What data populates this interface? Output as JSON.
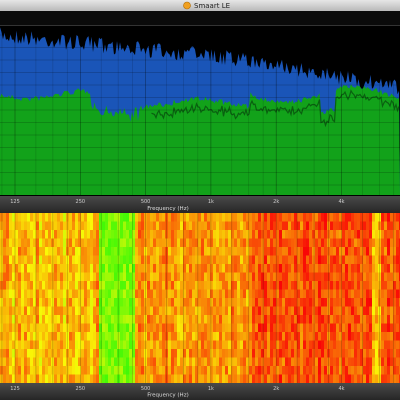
{
  "window": {
    "title": "Smaart LE"
  },
  "spectrum_axis": {
    "ticks": [
      "125",
      "250",
      "500",
      "1k",
      "2k",
      "4k"
    ],
    "label": "Frequency (Hz)"
  },
  "spectrograph_axis": {
    "ticks": [
      "125",
      "250",
      "500",
      "1k",
      "2k",
      "4k"
    ],
    "label": "Frequency (Hz)"
  }
}
